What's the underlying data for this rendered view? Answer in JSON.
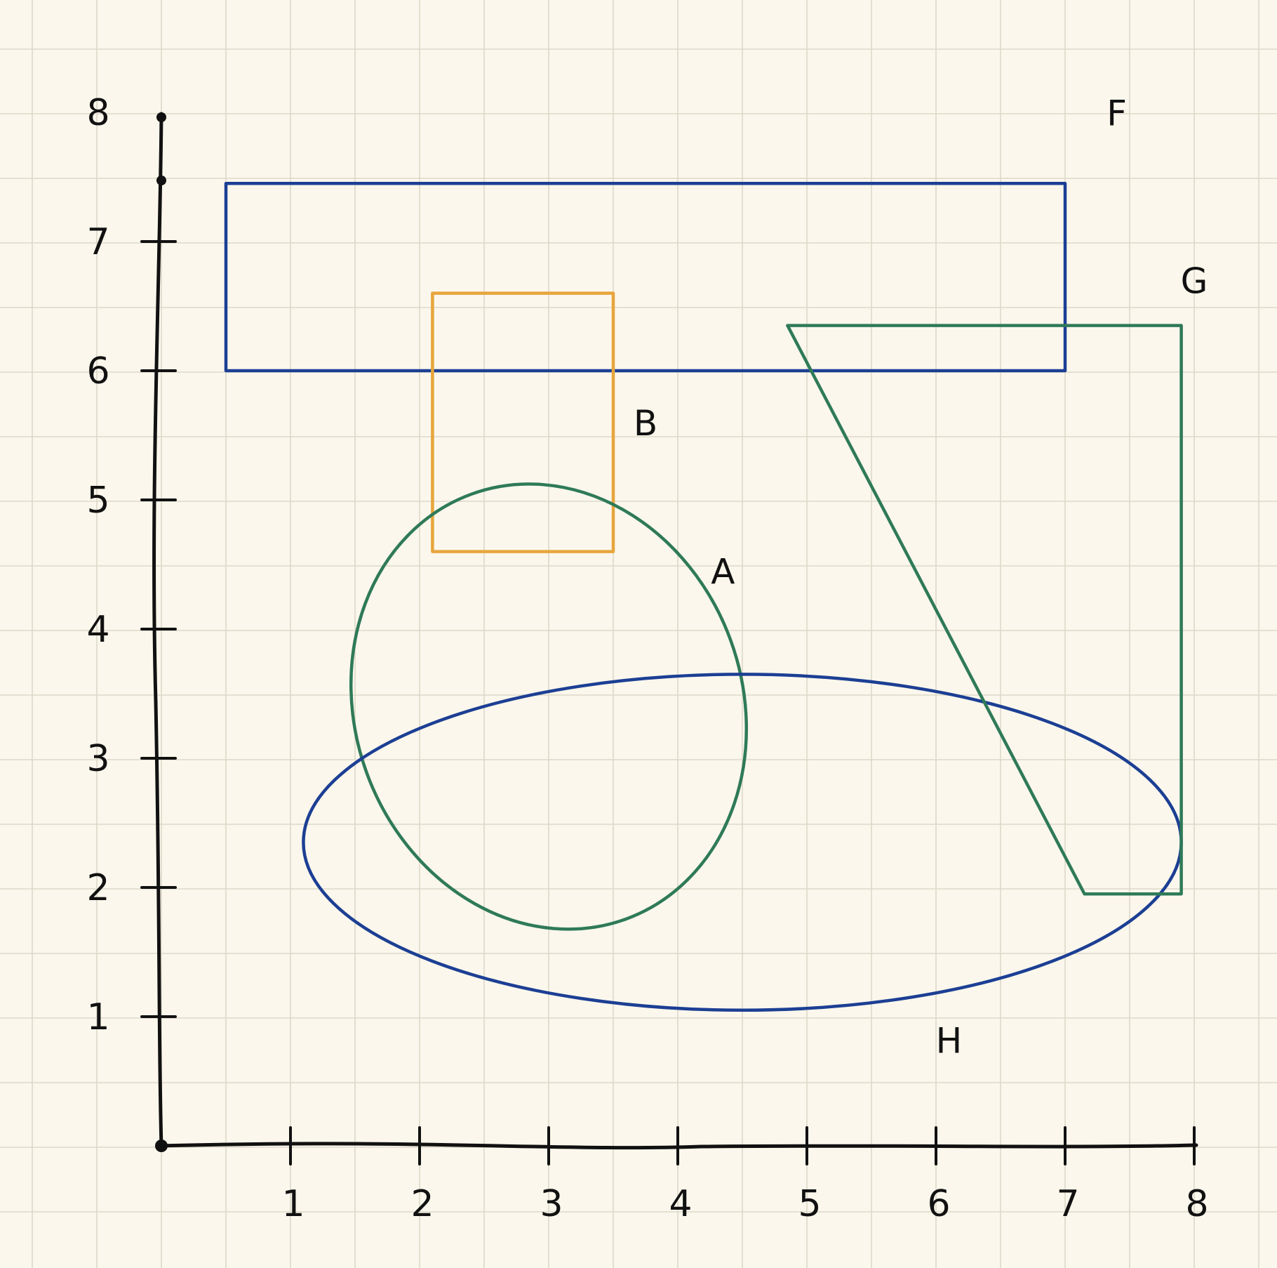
{
  "axes": {
    "x_ticks": [
      "1",
      "2",
      "3",
      "4",
      "5",
      "6",
      "7",
      "8"
    ],
    "y_ticks": [
      "1",
      "2",
      "3",
      "4",
      "5",
      "6",
      "7",
      "8"
    ],
    "range": [
      0,
      8
    ]
  },
  "colors": {
    "background": "#fbf7ec",
    "blue": "#1c3f94",
    "green": "#2f7a58",
    "orange": "#e7a53c",
    "axis": "#111111"
  },
  "shapes": [
    {
      "id": "F",
      "label": "F",
      "type": "rectangle",
      "color": "blue",
      "x": [
        0.5,
        7.0
      ],
      "y": [
        6.0,
        7.45
      ]
    },
    {
      "id": "B",
      "label": "B",
      "type": "rectangle",
      "color": "orange",
      "x": [
        2.1,
        3.5
      ],
      "y": [
        4.6,
        6.6
      ]
    },
    {
      "id": "A",
      "label": "A",
      "type": "ellipse",
      "color": "green",
      "center": [
        3.0,
        3.4
      ],
      "radii": [
        1.5,
        1.75
      ],
      "rotation_deg": -20
    },
    {
      "id": "H",
      "label": "H",
      "type": "ellipse",
      "color": "blue",
      "center": [
        4.5,
        2.35
      ],
      "radii": [
        3.4,
        1.3
      ],
      "rotation_deg": 0
    },
    {
      "id": "G",
      "label": "G",
      "type": "polygon",
      "color": "green",
      "points": [
        [
          4.85,
          6.35
        ],
        [
          7.9,
          6.35
        ],
        [
          7.9,
          1.95
        ],
        [
          7.15,
          1.95
        ]
      ]
    }
  ]
}
